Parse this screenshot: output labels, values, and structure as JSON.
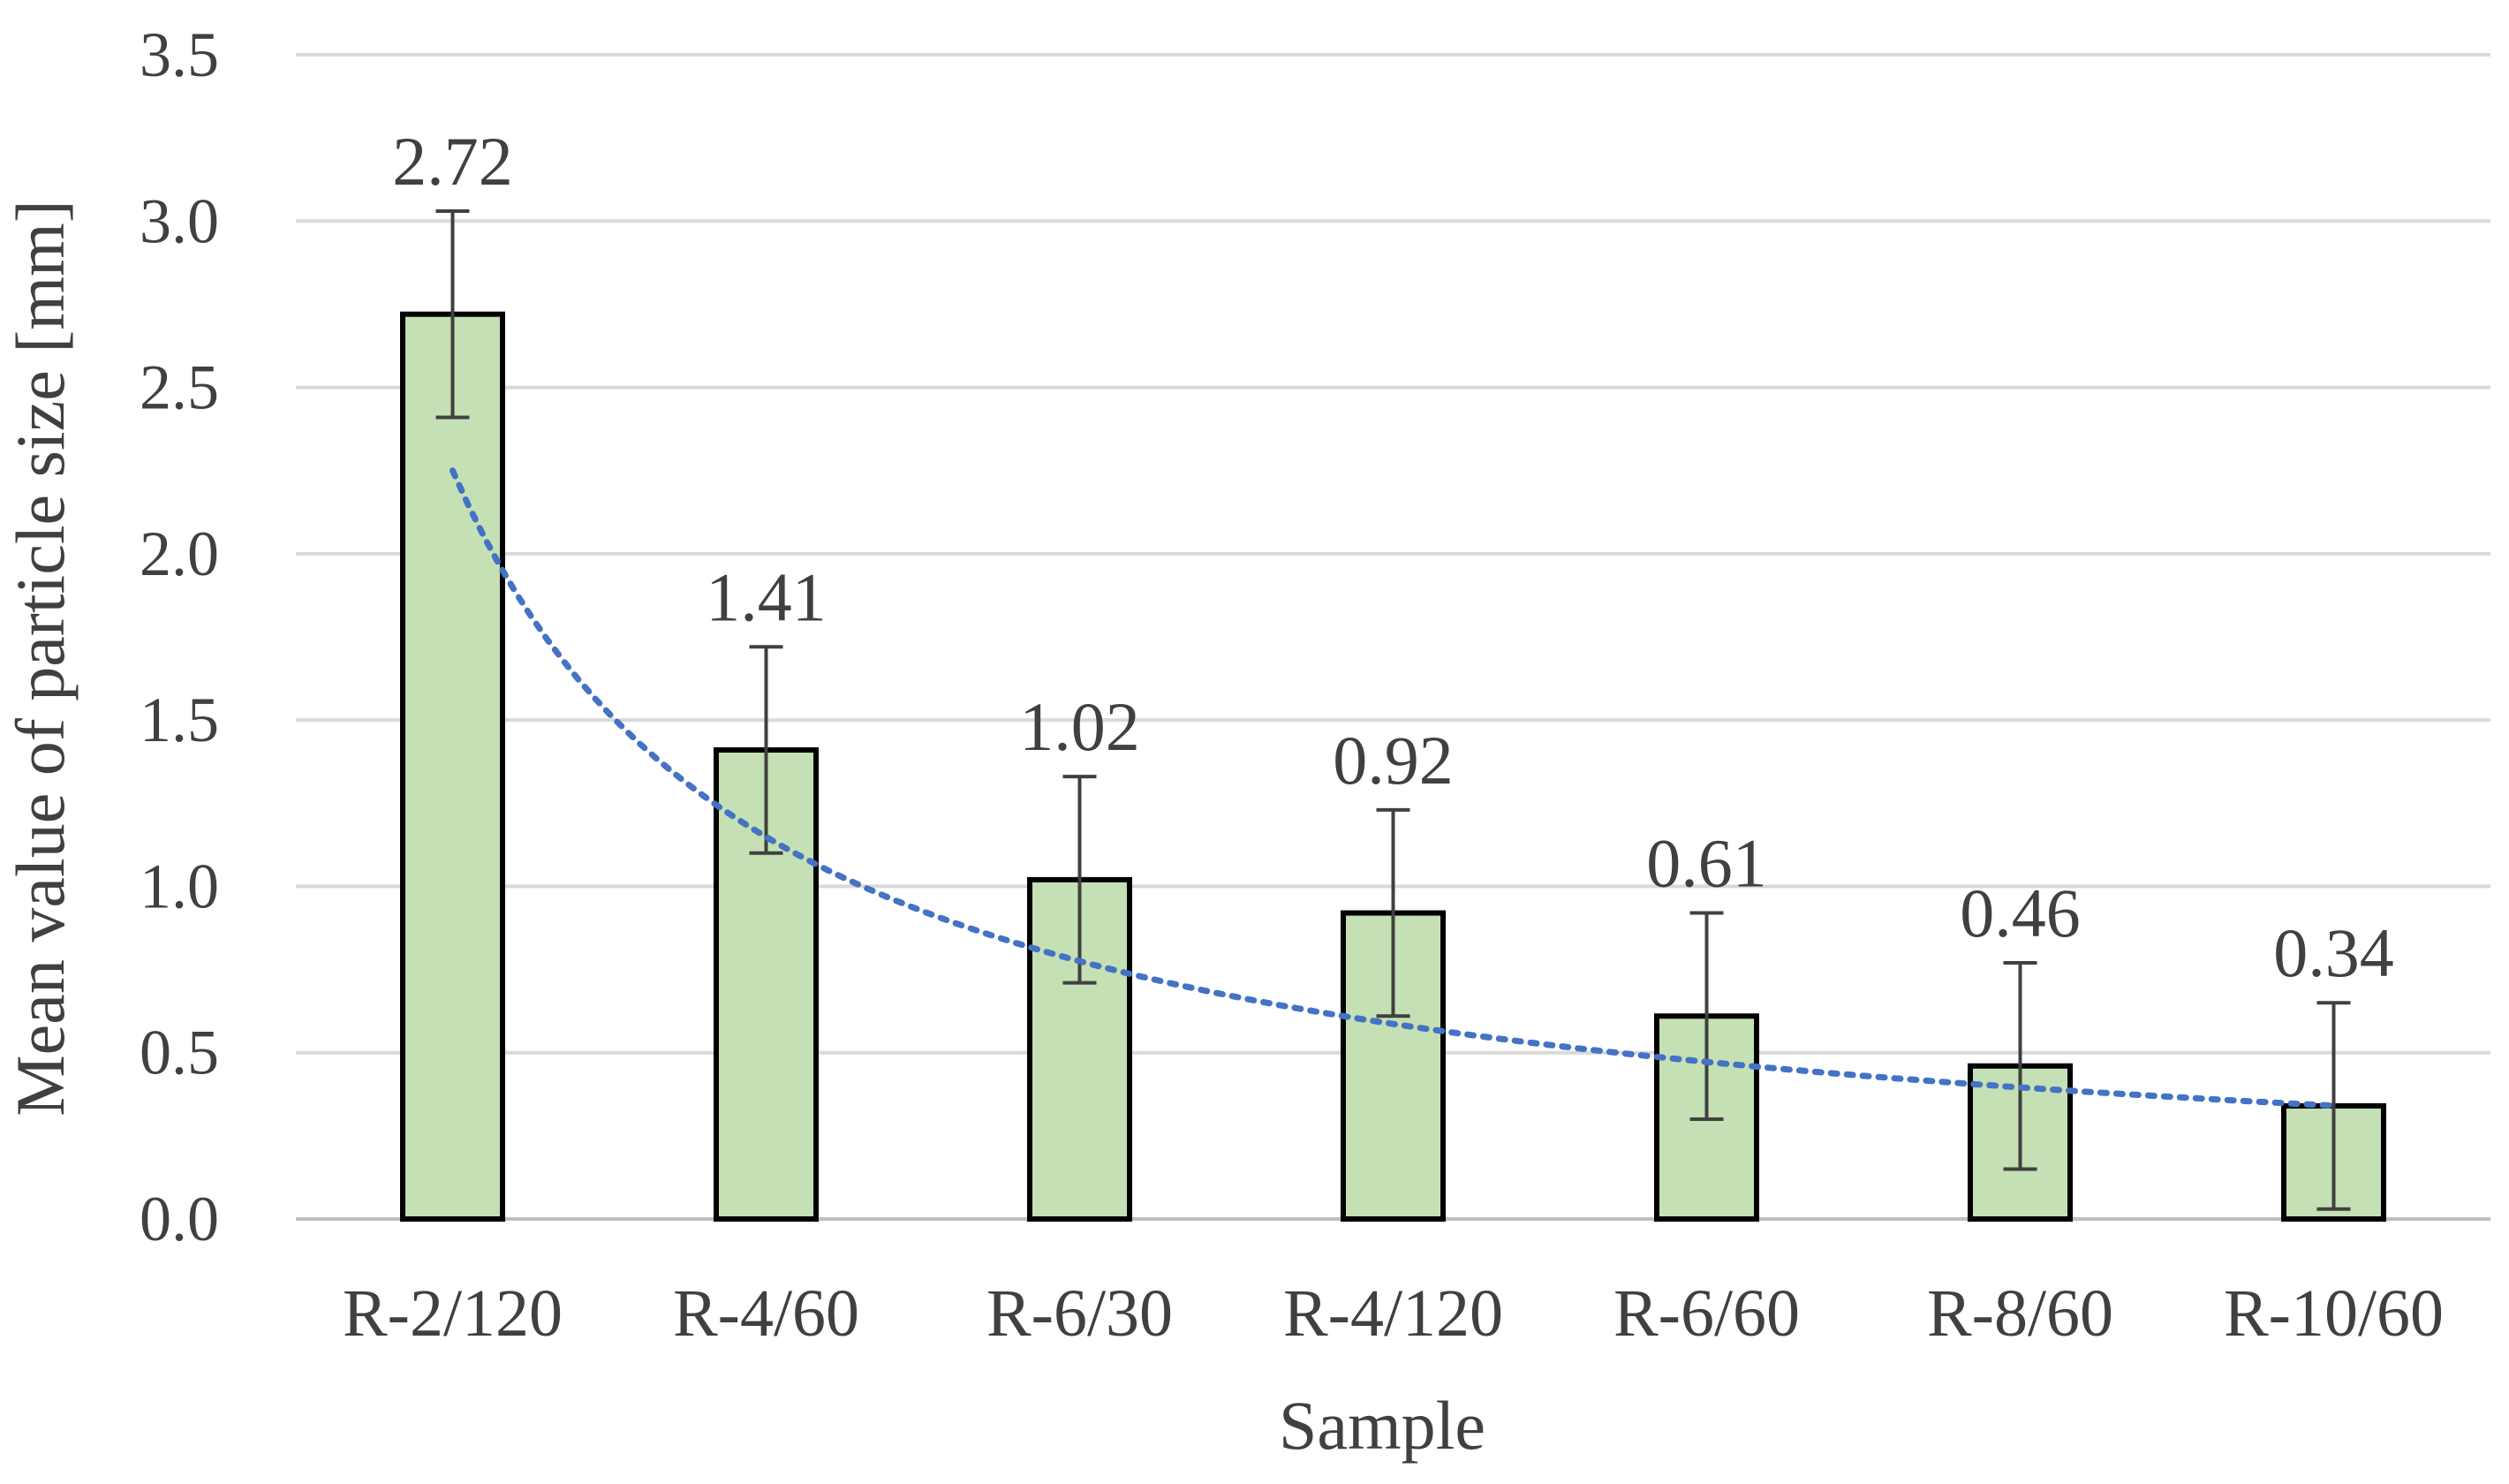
{
  "chart_data": {
    "type": "bar",
    "title": "",
    "xlabel": "Sample",
    "ylabel": "Mean value of particle size [mm]",
    "categories": [
      "R-2/120",
      "R-4/60",
      "R-6/30",
      "R-4/120",
      "R-6/60",
      "R-8/60",
      "R-10/60"
    ],
    "values": [
      2.72,
      1.41,
      1.02,
      0.92,
      0.61,
      0.46,
      0.34
    ],
    "value_labels": [
      "2.72",
      "1.41",
      "1.02",
      "0.92",
      "0.61",
      "0.46",
      "0.34"
    ],
    "error_bars": [
      0.31,
      0.31,
      0.31,
      0.31,
      0.31,
      0.31,
      0.31
    ],
    "ylim": [
      0,
      3.5
    ],
    "yticks": [
      0,
      0.5,
      1.0,
      1.5,
      2.0,
      2.5,
      3.0,
      3.5
    ],
    "ytick_labels": [
      "0.0",
      "0.5",
      "1.0",
      "1.5",
      "2.0",
      "2.5",
      "3.0",
      "3.5"
    ],
    "grid": true,
    "trendline": {
      "type": "power",
      "style": "dotted",
      "from_category": 0,
      "to_category": 6,
      "coefficient": 2.25,
      "exponent": -0.97
    },
    "colors": {
      "bar_fill": "#c5e0b4",
      "bar_stroke": "#000000",
      "grid": "#d9d9d9",
      "error_bar": "#404040",
      "trendline": "#4472c4",
      "text": "#404040"
    }
  }
}
